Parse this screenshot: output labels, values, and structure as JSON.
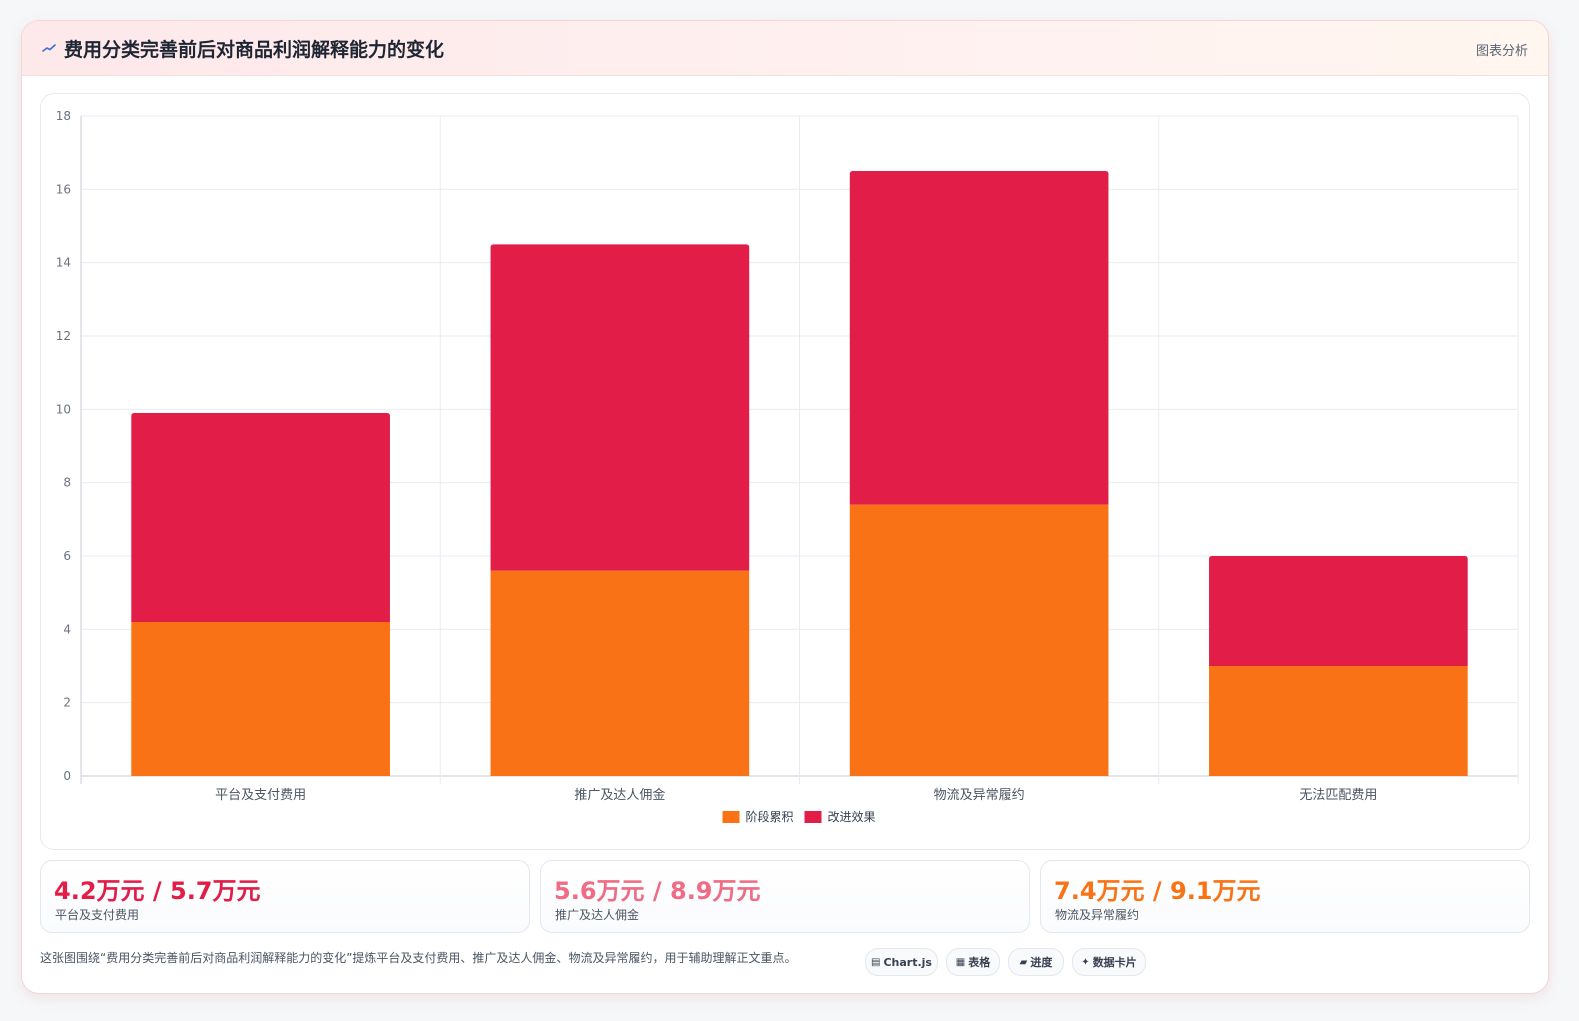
{
  "header": {
    "title": "费用分类完善前后对商品利润解释能力的变化",
    "tag": "图表分析",
    "icon": "trend-line-icon"
  },
  "colors": {
    "series_1": "#f97316",
    "series_2": "#e11d48",
    "stat_1": "#e11d48",
    "stat_2": "#f06b85",
    "stat_3": "#f97316"
  },
  "chart_data": {
    "type": "bar",
    "stacked": true,
    "categories": [
      "平台及支付费用",
      "推广及达人佣金",
      "物流及异常履约",
      "无法匹配费用"
    ],
    "series": [
      {
        "name": "阶段累积",
        "values": [
          4.2,
          5.6,
          7.4,
          3.0
        ]
      },
      {
        "name": "改进效果",
        "values": [
          5.7,
          8.9,
          9.1,
          3.0
        ]
      }
    ],
    "ylim": [
      0,
      18
    ],
    "yticks": [
      "0",
      "2",
      "4",
      "6",
      "8",
      "10",
      "12",
      "14",
      "16",
      "18"
    ],
    "title": "",
    "xlabel": "",
    "ylabel": "",
    "grid": true,
    "legend_position": "bottom-center"
  },
  "stats": [
    {
      "value": "4.2万元 / 5.7万元",
      "label": "平台及支付费用"
    },
    {
      "value": "5.6万元 / 8.9万元",
      "label": "推广及达人佣金"
    },
    {
      "value": "7.4万元 / 9.1万元",
      "label": "物流及异常履约"
    }
  ],
  "footer": {
    "text": "这张图围绕“费用分类完善前后对商品利润解释能力的变化”提炼平台及支付费用、推广及达人佣金、物流及异常履约，用于辅助理解正文重点。",
    "pills": [
      {
        "glyph": "▤",
        "icon": "chart-icon",
        "label": "Chart.js"
      },
      {
        "glyph": "▦",
        "icon": "table-icon",
        "label": "表格"
      },
      {
        "glyph": "▰",
        "icon": "progress-icon",
        "label": "进度"
      },
      {
        "glyph": "✦",
        "icon": "sparkle-icon",
        "label": "数据卡片"
      }
    ]
  }
}
